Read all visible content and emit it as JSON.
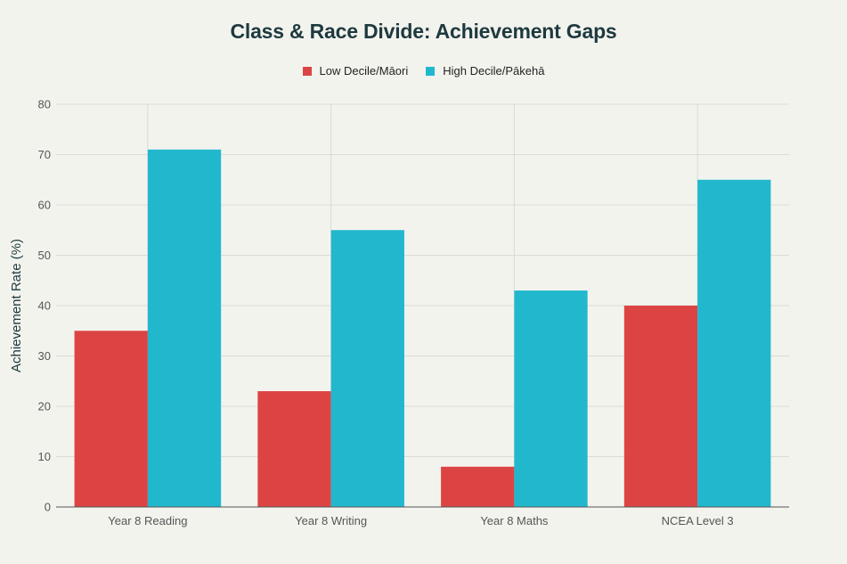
{
  "chart_data": {
    "type": "bar",
    "title": "Class & Race Divide: Achievement Gaps",
    "xlabel": "",
    "ylabel": "Achievement Rate (%)",
    "ylim": [
      0,
      80
    ],
    "yticks": [
      0,
      10,
      20,
      30,
      40,
      50,
      60,
      70,
      80
    ],
    "grid": true,
    "legend_position": "top-center",
    "categories": [
      "Year 8 Reading",
      "Year 8 Writing",
      "Year 8 Maths",
      "NCEA Level 3"
    ],
    "series": [
      {
        "name": "Low Decile/Māori",
        "color": "#dc4444",
        "values": [
          35,
          23,
          8,
          40
        ]
      },
      {
        "name": "High Decile/Pākehā",
        "color": "#21b8cd",
        "values": [
          71,
          55,
          43,
          65
        ]
      }
    ]
  },
  "colors": {
    "background": "#f3f3ee",
    "title": "#1e3a3f",
    "grid": "#dcdcd6",
    "axis": "#555555"
  }
}
